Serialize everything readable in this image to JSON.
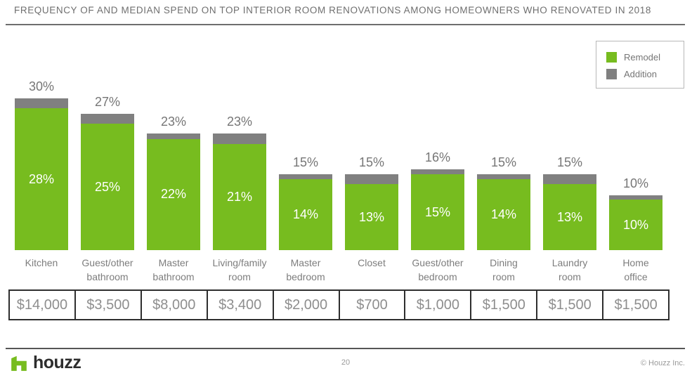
{
  "title": "FREQUENCY OF AND MEDIAN SPEND ON TOP INTERIOR ROOM RENOVATIONS AMONG HOMEOWNERS WHO RENOVATED IN 2018",
  "legend": {
    "items": [
      {
        "label": "Remodel",
        "color": "#77BC1F"
      },
      {
        "label": "Addition",
        "color": "#808080"
      }
    ]
  },
  "colors": {
    "remodel_green": "#77BC1F",
    "addition_gray": "#808080",
    "label_gray": "#767676",
    "table_border": "#2e2e2e"
  },
  "chart_data": {
    "type": "bar",
    "stacked": true,
    "categories": [
      "Kitchen",
      "Guest/other\nbathroom",
      "Master\nbathroom",
      "Living/family\nroom",
      "Master\nbedroom",
      "Closet",
      "Guest/other\nbedroom",
      "Dining\nroom",
      "Laundry\nroom",
      "Home\noffice"
    ],
    "series": [
      {
        "name": "Remodel",
        "values": [
          28,
          25,
          22,
          21,
          14,
          13,
          15,
          14,
          13,
          10
        ]
      },
      {
        "name": "Addition",
        "values": [
          2,
          2,
          1,
          2,
          1,
          2,
          1,
          1,
          2,
          0
        ]
      }
    ],
    "totals": [
      30,
      27,
      23,
      23,
      15,
      15,
      16,
      15,
      15,
      10
    ],
    "median_spend": [
      "$14,000",
      "$3,500",
      "$8,000",
      "$3,400",
      "$2,000",
      "$700",
      "$1,000",
      "$1,500",
      "$1,500",
      "$1,500"
    ],
    "title": "FREQUENCY OF AND MEDIAN SPEND ON TOP INTERIOR ROOM RENOVATIONS AMONG HOMEOWNERS WHO RENOVATED IN 2018",
    "value_suffix": "%",
    "legend_position": "top-right",
    "grid": false,
    "ylim": [
      0,
      30
    ]
  },
  "footer": {
    "logo_text": "houzz",
    "page_number": "20",
    "copyright": "© Houzz Inc."
  }
}
